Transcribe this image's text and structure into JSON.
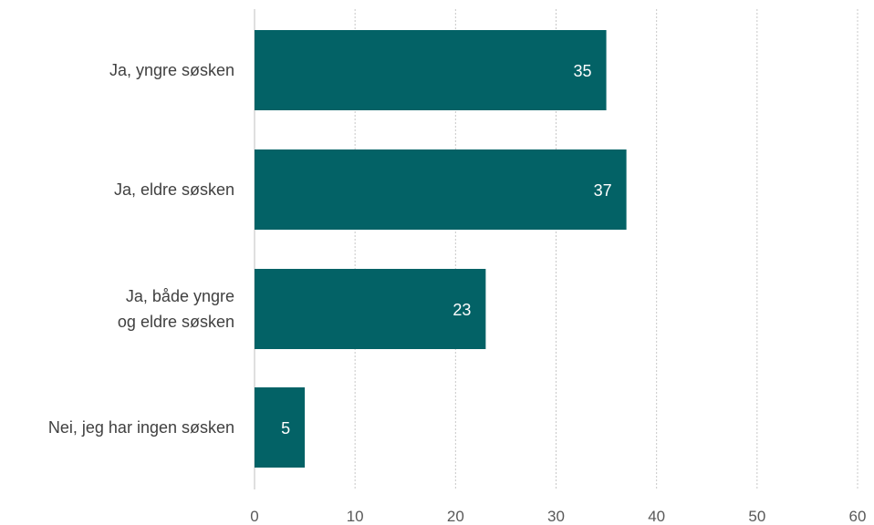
{
  "chart_data": {
    "type": "bar",
    "orientation": "horizontal",
    "categories": [
      "Ja, yngre søsken",
      "Ja, eldre søsken",
      "Ja, både yngre og eldre søsken",
      "Nei, jeg har ingen søsken"
    ],
    "category_lines": [
      [
        "Ja, yngre søsken"
      ],
      [
        "Ja, eldre søsken"
      ],
      [
        "Ja, både yngre",
        "og eldre søsken"
      ],
      [
        "Nei, jeg har ingen søsken"
      ]
    ],
    "values": [
      35,
      37,
      23,
      5
    ],
    "data_labels": [
      "35",
      "37",
      "23",
      "5"
    ],
    "xlim": [
      0,
      60
    ],
    "xticks": [
      0,
      10,
      20,
      30,
      40,
      50,
      60
    ],
    "xtick_labels": [
      "0",
      "10",
      "20",
      "30",
      "40",
      "50",
      "60"
    ],
    "title": "",
    "xlabel": "",
    "ylabel": "",
    "grid": "vertical",
    "legend": "none",
    "colors": {
      "bar": "#036266",
      "label_text": "#ffffff"
    }
  }
}
